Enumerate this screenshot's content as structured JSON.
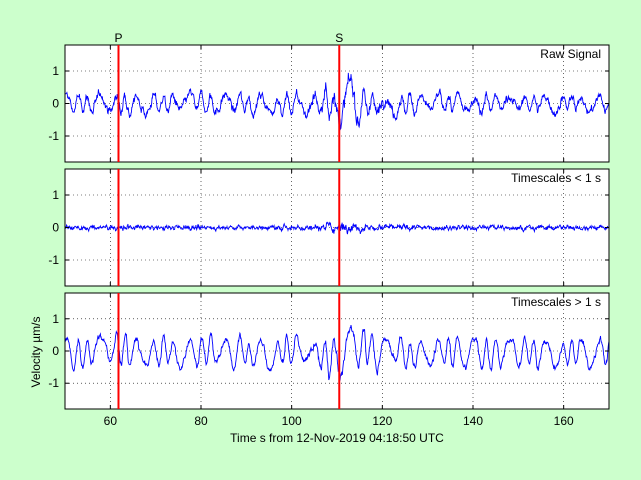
{
  "chart_data": {
    "type": "line",
    "figure_background": "#ccffcc",
    "plot_background": "#ffffff",
    "trace_color": "#0000ff",
    "marker_color": "#ff0000",
    "grid": "dotted",
    "shared_x": {
      "label": "Time s from 12-Nov-2019 04:18:50 UTC",
      "xlim": [
        50,
        170
      ],
      "ticks": [
        60,
        80,
        100,
        120,
        140,
        160
      ]
    },
    "ylabel": "Velocity µm/s",
    "phase_markers": [
      {
        "label": "P",
        "x": 61.8
      },
      {
        "label": "S",
        "x": 110.5
      }
    ],
    "panels": [
      {
        "label": "Raw Signal",
        "ylim": [
          -1.8,
          1.8
        ],
        "yticks": [
          -1,
          0,
          1
        ],
        "amplitude": 0.55,
        "burst": 0.85,
        "high_frequency": 0.35,
        "smooth": 0.55
      },
      {
        "label": "Timescales < 1 s",
        "ylim": [
          -1.8,
          1.8
        ],
        "yticks": [
          -1,
          0,
          1
        ],
        "amplitude": 0.12,
        "burst": 0.75,
        "high_frequency": 1.0,
        "smooth": 0.0
      },
      {
        "label": "Timescales > 1 s",
        "ylim": [
          -1.8,
          1.8
        ],
        "yticks": [
          -1,
          0,
          1
        ],
        "amplitude": 0.5,
        "burst": 0.4,
        "high_frequency": 0.0,
        "smooth": 1.0
      }
    ]
  }
}
